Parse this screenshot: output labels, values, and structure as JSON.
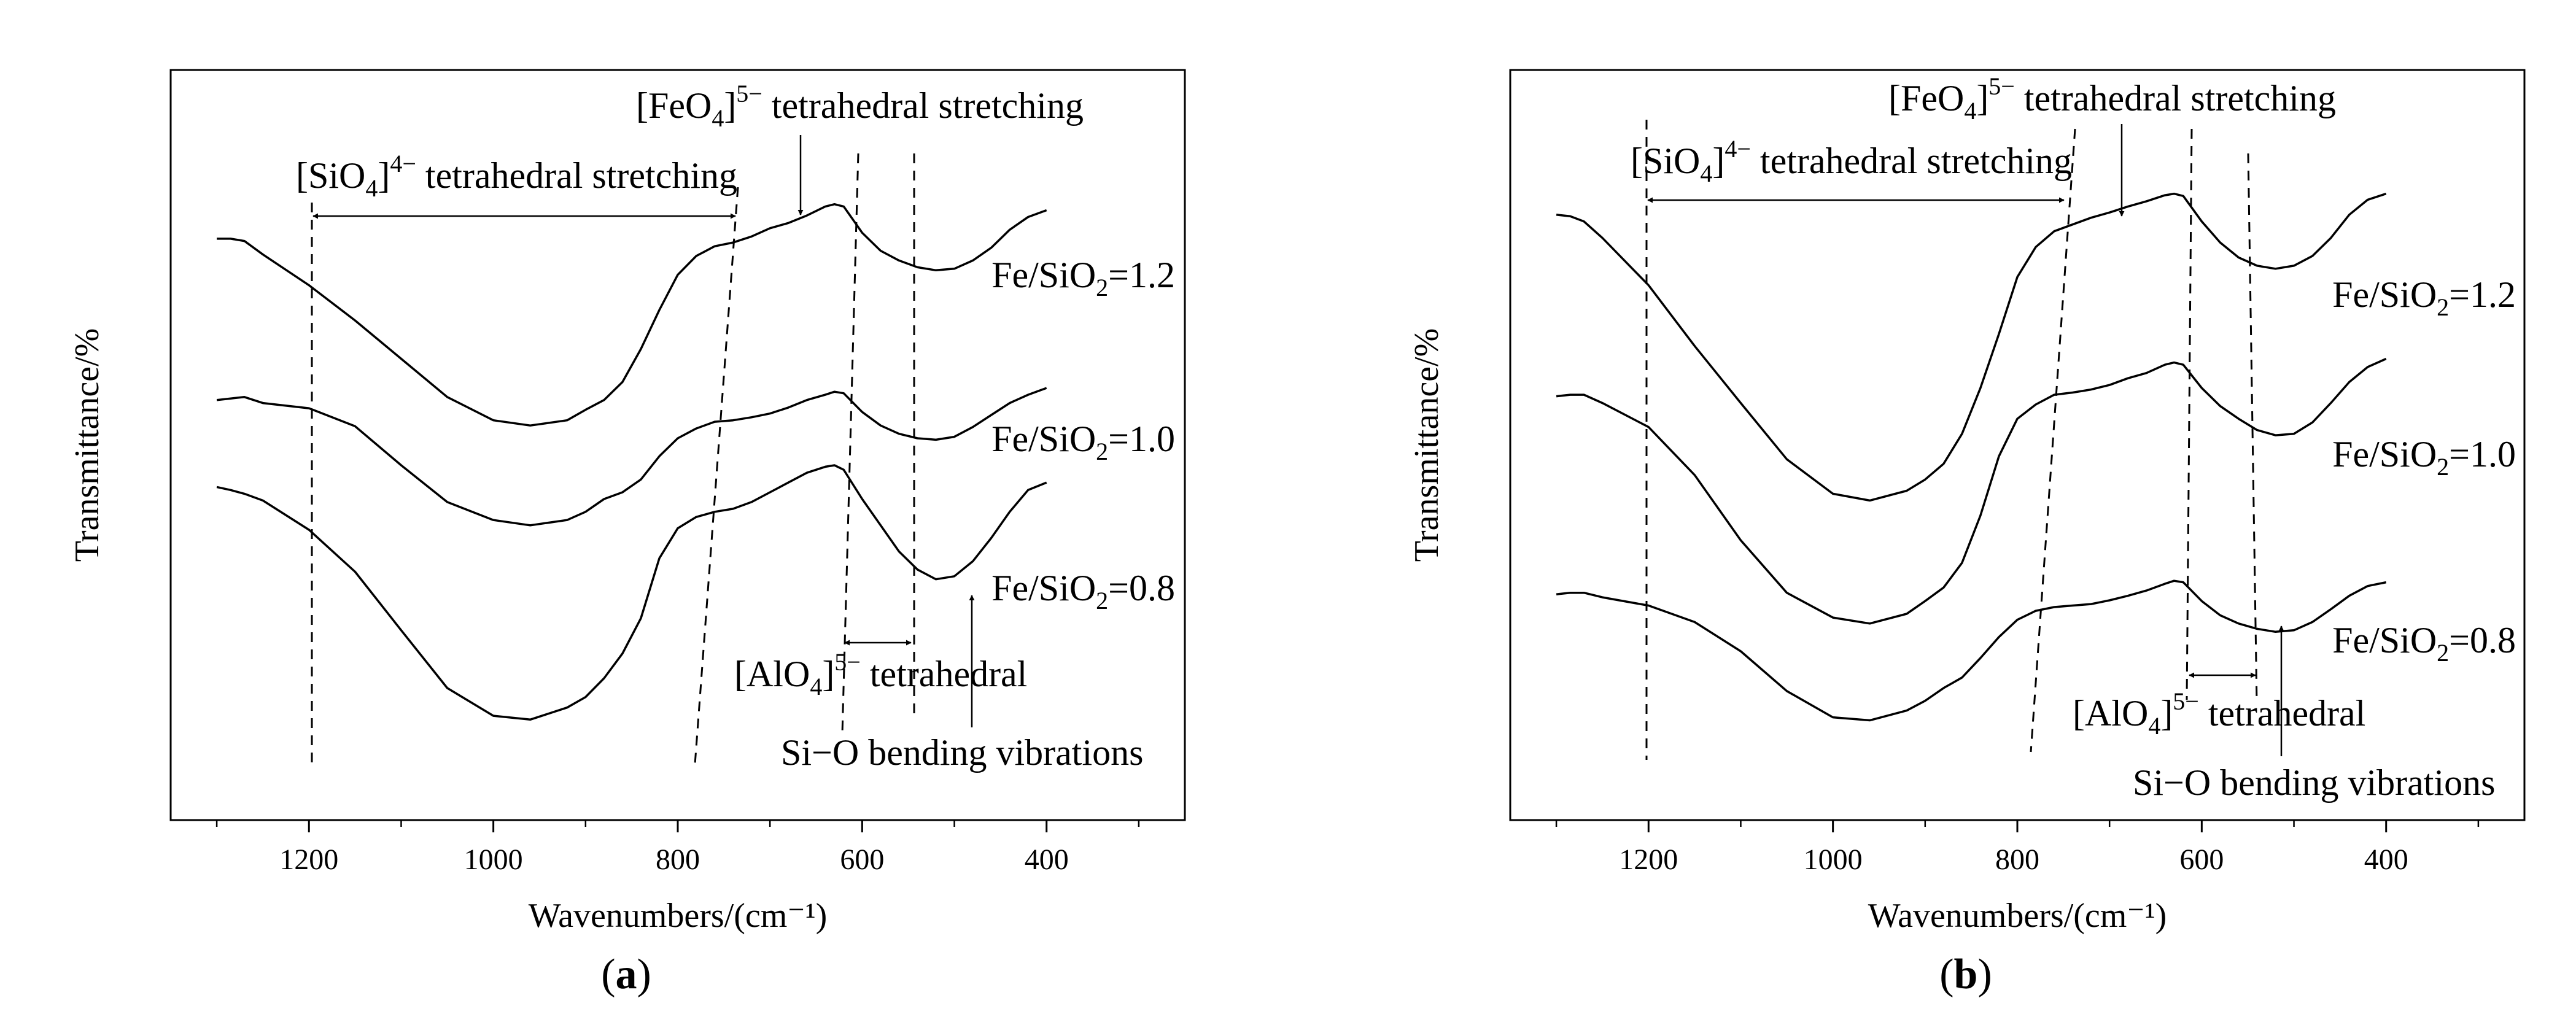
{
  "figure": {
    "panels": [
      {
        "label": "(a)",
        "curve_labels": [
          "Fe/SiO2=1.2",
          "Fe/SiO2=1.0",
          "Fe/SiO2=0.8"
        ],
        "annotations": {
          "sio4": "[SiO4]4− tetrahedral stretching",
          "feo4": "[FeO4]5− tetrahedral stretching",
          "alo4": "[AlO4]5− tetrahedral",
          "sio_bend": "Si−O bending vibrations"
        }
      },
      {
        "label": "(b)",
        "curve_labels": [
          "Fe/SiO2=1.2",
          "Fe/SiO2=1.0",
          "Fe/SiO2=0.8"
        ],
        "annotations": {
          "sio4": "[SiO4]4− tetrahedral stretching",
          "feo4": "[FeO4]5− tetrahedral stretching",
          "alo4": "[AlO4]5− tetrahedral",
          "sio_bend": "Si−O bending vibrations"
        }
      }
    ]
  },
  "chart_data": [
    {
      "type": "line",
      "title": "(a)",
      "xlabel": "Wavenumbers/(cm⁻¹)",
      "ylabel": "Transmittance/%",
      "xlim": [
        1350,
        250
      ],
      "x_reversed": true,
      "ylim": [
        0,
        100
      ],
      "xticks": [
        1200,
        1000,
        800,
        600,
        400
      ],
      "yticks": [],
      "series": [
        {
          "name": "Fe/SiO2=1.2",
          "x": [
            1300,
            1285,
            1270,
            1250,
            1200,
            1150,
            1100,
            1050,
            1000,
            960,
            920,
            900,
            880,
            860,
            840,
            820,
            800,
            780,
            760,
            740,
            720,
            700,
            680,
            660,
            640,
            630,
            620,
            600,
            580,
            560,
            540,
            520,
            500,
            480,
            460,
            440,
            420,
            400
          ],
          "y": [
            77.5,
            77.5,
            77.2,
            75.4,
            71.3,
            66.6,
            61.5,
            56.4,
            53.3,
            52.6,
            53.3,
            54.7,
            56.0,
            58.4,
            62.8,
            68.0,
            72.7,
            75.2,
            76.5,
            77.0,
            77.8,
            78.9,
            79.6,
            80.6,
            81.8,
            82.1,
            81.8,
            78.3,
            75.9,
            74.6,
            73.7,
            73.3,
            73.5,
            74.6,
            76.3,
            78.7,
            80.4,
            81.3
          ]
        },
        {
          "name": "Fe/SiO2=1.0",
          "x": [
            1300,
            1285,
            1270,
            1250,
            1200,
            1150,
            1100,
            1050,
            1000,
            960,
            920,
            900,
            880,
            860,
            840,
            820,
            800,
            780,
            760,
            740,
            720,
            700,
            680,
            660,
            640,
            630,
            620,
            600,
            580,
            560,
            540,
            520,
            500,
            480,
            460,
            440,
            420,
            400
          ],
          "y": [
            56.0,
            56.2,
            56.4,
            55.6,
            54.9,
            52.5,
            47.3,
            42.4,
            40.0,
            39.3,
            40.0,
            41.1,
            42.8,
            43.7,
            45.4,
            48.5,
            50.9,
            52.2,
            53.1,
            53.3,
            53.7,
            54.2,
            55.0,
            56.0,
            56.7,
            57.1,
            56.9,
            54.4,
            52.6,
            51.5,
            50.9,
            50.7,
            51.1,
            52.4,
            54.0,
            55.6,
            56.7,
            57.6
          ]
        },
        {
          "name": "Fe/SiO2=0.8",
          "x": [
            1300,
            1285,
            1270,
            1250,
            1200,
            1150,
            1100,
            1050,
            1000,
            960,
            920,
            900,
            880,
            860,
            840,
            820,
            800,
            780,
            760,
            740,
            720,
            700,
            680,
            660,
            640,
            630,
            620,
            600,
            580,
            560,
            540,
            520,
            500,
            480,
            460,
            440,
            420,
            400
          ],
          "y": [
            44.4,
            44.0,
            43.5,
            42.6,
            38.7,
            33.1,
            25.3,
            17.6,
            13.9,
            13.4,
            15.0,
            16.4,
            18.9,
            22.2,
            26.9,
            34.9,
            38.9,
            40.4,
            41.1,
            41.5,
            42.4,
            43.7,
            45.0,
            46.3,
            47.1,
            47.3,
            46.7,
            42.8,
            39.3,
            35.8,
            33.4,
            32.1,
            32.5,
            34.5,
            37.6,
            41.1,
            44.0,
            45.0
          ]
        }
      ]
    },
    {
      "type": "line",
      "title": "(b)",
      "xlabel": "Wavenumbers/(cm⁻¹)",
      "ylabel": "Transmittance/%",
      "xlim": [
        1350,
        250
      ],
      "x_reversed": true,
      "ylim": [
        0,
        100
      ],
      "xticks": [
        1200,
        1000,
        800,
        600,
        400
      ],
      "yticks": [],
      "series": [
        {
          "name": "Fe/SiO2=1.2",
          "x": [
            1300,
            1285,
            1270,
            1250,
            1200,
            1150,
            1100,
            1050,
            1000,
            960,
            920,
            900,
            880,
            860,
            840,
            820,
            800,
            780,
            760,
            740,
            720,
            700,
            680,
            660,
            640,
            630,
            620,
            600,
            580,
            560,
            540,
            520,
            500,
            480,
            460,
            440,
            420,
            400
          ],
          "y": [
            80.7,
            80.5,
            79.8,
            77.6,
            71.3,
            63.2,
            55.6,
            48.1,
            43.5,
            42.6,
            43.9,
            45.4,
            47.5,
            51.5,
            57.6,
            64.8,
            72.4,
            76.4,
            78.5,
            79.4,
            80.3,
            81.0,
            81.8,
            82.5,
            83.3,
            83.5,
            83.2,
            79.8,
            77.0,
            75.0,
            73.9,
            73.5,
            73.9,
            75.2,
            77.6,
            80.7,
            82.7,
            83.5
          ]
        },
        {
          "name": "Fe/SiO2=1.0",
          "x": [
            1300,
            1285,
            1270,
            1250,
            1200,
            1150,
            1100,
            1050,
            1000,
            960,
            920,
            900,
            880,
            860,
            840,
            820,
            800,
            780,
            760,
            740,
            720,
            700,
            680,
            660,
            640,
            630,
            620,
            600,
            580,
            560,
            540,
            520,
            500,
            480,
            460,
            440,
            420,
            400
          ],
          "y": [
            56.5,
            56.7,
            56.7,
            55.6,
            52.4,
            46.0,
            37.3,
            30.3,
            27.0,
            26.2,
            27.5,
            29.2,
            31.0,
            34.3,
            40.6,
            48.5,
            53.5,
            55.4,
            56.7,
            57.0,
            57.4,
            58.0,
            58.9,
            59.6,
            60.7,
            61.0,
            60.7,
            57.6,
            55.2,
            53.5,
            52.0,
            51.3,
            51.5,
            53.0,
            55.6,
            58.4,
            60.4,
            61.5
          ]
        },
        {
          "name": "Fe/SiO2=0.8",
          "x": [
            1300,
            1285,
            1270,
            1250,
            1200,
            1150,
            1100,
            1050,
            1000,
            960,
            920,
            900,
            880,
            860,
            840,
            820,
            800,
            780,
            760,
            740,
            720,
            700,
            680,
            660,
            640,
            630,
            620,
            600,
            580,
            560,
            540,
            520,
            500,
            480,
            460,
            440,
            420,
            400
          ],
          "y": [
            30.1,
            30.3,
            30.3,
            29.7,
            28.6,
            26.4,
            22.5,
            17.2,
            13.7,
            13.3,
            14.6,
            15.9,
            17.6,
            19.0,
            21.6,
            24.4,
            26.7,
            27.9,
            28.4,
            28.6,
            28.8,
            29.3,
            29.9,
            30.6,
            31.5,
            31.9,
            31.7,
            29.2,
            27.3,
            26.2,
            25.5,
            25.1,
            25.3,
            26.4,
            28.1,
            29.9,
            31.2,
            31.7
          ]
        }
      ]
    }
  ]
}
